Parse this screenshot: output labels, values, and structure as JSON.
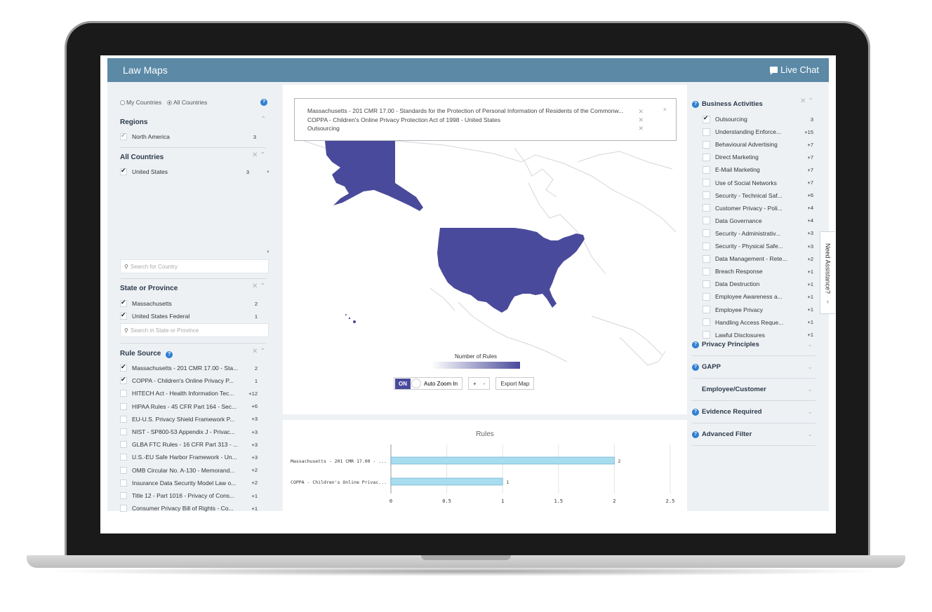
{
  "app": {
    "title": "Law Maps",
    "live_chat": "Live Chat",
    "need_assistance": "Need Assistance?"
  },
  "left": {
    "scope": {
      "my": "My Countries",
      "all": "All Countries"
    },
    "regions": {
      "title": "Regions",
      "items": [
        {
          "label": "North America",
          "count": "3"
        }
      ]
    },
    "countries": {
      "title": "All Countries",
      "items": [
        {
          "label": "United States",
          "count": "3"
        }
      ],
      "search_placeholder": "Search for Country"
    },
    "states": {
      "title": "State or Province",
      "items": [
        {
          "label": "Massachusetts",
          "count": "2"
        },
        {
          "label": "United States Federal",
          "count": "1"
        }
      ],
      "search_placeholder": "Search in State or Province"
    },
    "rule_source": {
      "title": "Rule Source",
      "items": [
        {
          "label": "Massachusetts - 201 CMR 17.00 - Sta...",
          "count": "2",
          "checked": true
        },
        {
          "label": "COPPA - Children's Online Privacy P...",
          "count": "1",
          "checked": true
        },
        {
          "label": "HITECH Act - Health Information Tec...",
          "count": "+12"
        },
        {
          "label": "HIPAA Rules - 45 CFR Part 164 - Sec...",
          "count": "+6"
        },
        {
          "label": "EU-U.S. Privacy Shield Framework P...",
          "count": "+3"
        },
        {
          "label": "NIST - SP800-53 Appendix J - Privac...",
          "count": "+3"
        },
        {
          "label": "GLBA FTC Rules - 16 CFR Part 313 - ...",
          "count": "+3"
        },
        {
          "label": "U.S.-EU Safe Harbor Framework - Un...",
          "count": "+3"
        },
        {
          "label": "OMB Circular No. A-130 - Memorand...",
          "count": "+2"
        },
        {
          "label": "Insurance Data Security Model Law o...",
          "count": "+2"
        },
        {
          "label": "Title 12 - Part 1016 - Privacy of Cons...",
          "count": "+1"
        },
        {
          "label": "Consumer Privacy Bill of Rights - Co...",
          "count": "+1"
        }
      ]
    }
  },
  "map": {
    "filters": [
      "Massachusetts - 201 CMR 17.00 - Standards for the Protection of Personal Information of Residents of the Commonw...",
      "COPPA - Children's Online Privacy Protection Act of 1998 - United States",
      "Outsourcing"
    ],
    "legend_title": "Number of Rules",
    "toggle_on": "ON",
    "auto_zoom": "Auto Zoom In",
    "zoom_in": "+",
    "zoom_out": "-",
    "export": "Export Map",
    "colors": {
      "fill": "#4a4a9c",
      "land": "#ffffff",
      "border": "#d4d6da"
    }
  },
  "chart_data": {
    "type": "bar",
    "title": "Rules",
    "orientation": "horizontal",
    "categories": [
      "Massachusetts - 201 CMR 17.00 - ...",
      "COPPA - Children's Online Privac..."
    ],
    "values": [
      2,
      1
    ],
    "value_labels": [
      "2",
      "1"
    ],
    "xlim": [
      0,
      2.5
    ],
    "x_ticks": [
      "0",
      "0.5",
      "1",
      "1.5",
      "2",
      "2.5"
    ],
    "grid": true,
    "bar_color": "#a8dcef"
  },
  "right": {
    "business": {
      "title": "Business Activities",
      "items": [
        {
          "label": "Outsourcing",
          "count": "3",
          "checked": true
        },
        {
          "label": "Understanding Enforce...",
          "count": "+15"
        },
        {
          "label": "Behavioural Advertising",
          "count": "+7"
        },
        {
          "label": "Direct Marketing",
          "count": "+7"
        },
        {
          "label": "E-Mail Marketing",
          "count": "+7"
        },
        {
          "label": "Use of Social Networks",
          "count": "+7"
        },
        {
          "label": "Security - Technical Saf...",
          "count": "+6"
        },
        {
          "label": "Customer Privacy - Poli...",
          "count": "+4"
        },
        {
          "label": "Data Governance",
          "count": "+4"
        },
        {
          "label": "Security - Administrativ...",
          "count": "+3"
        },
        {
          "label": "Security - Physical Safe...",
          "count": "+3"
        },
        {
          "label": "Data Management - Rete...",
          "count": "+2"
        },
        {
          "label": "Breach Response",
          "count": "+1"
        },
        {
          "label": "Data Destruction",
          "count": "+1"
        },
        {
          "label": "Employee Awareness a...",
          "count": "+1"
        },
        {
          "label": "Employee Privacy",
          "count": "+1"
        },
        {
          "label": "Handling Access Reque...",
          "count": "+1"
        },
        {
          "label": "Lawful Disclosures",
          "count": "+1"
        }
      ]
    },
    "sections": [
      {
        "label": "Privacy Principles",
        "help": true
      },
      {
        "label": "GAPP",
        "help": true
      },
      {
        "label": "Employee/Customer",
        "help": false
      },
      {
        "label": "Evidence Required",
        "help": true
      },
      {
        "label": "Advanced Filter",
        "help": true
      }
    ]
  }
}
